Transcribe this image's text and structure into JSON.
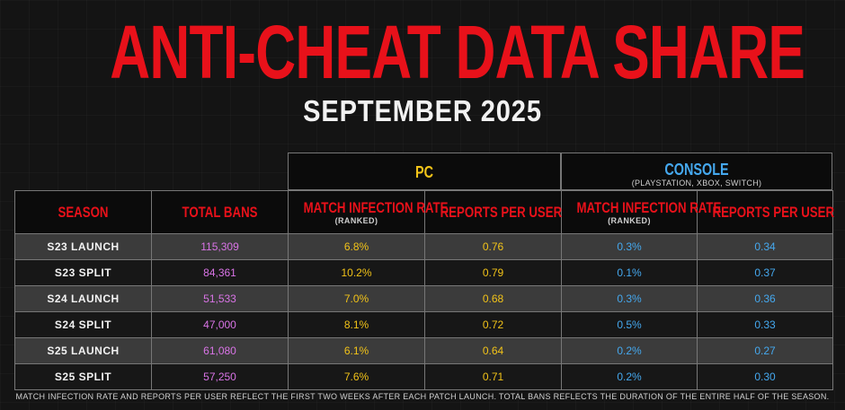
{
  "title": "ANTI-CHEAT DATA SHARE",
  "subtitle": "SEPTEMBER 2025",
  "groups": {
    "pc": {
      "label": "PC"
    },
    "console": {
      "label": "CONSOLE",
      "sublabel": "(PLAYSTATION, XBOX, SWITCH)"
    }
  },
  "columns": {
    "season": "SEASON",
    "total_bans": "TOTAL BANS",
    "pc_infection": "MATCH INFECTION RATE",
    "pc_infection_sub": "(RANKED)",
    "pc_reports": "REPORTS PER USER",
    "con_infection": "MATCH INFECTION RATE",
    "con_infection_sub": "(RANKED)",
    "con_reports": "REPORTS PER USER"
  },
  "rows": [
    {
      "season": "S23 LAUNCH",
      "total_bans": "115,309",
      "pc_infection": "6.8%",
      "pc_reports": "0.76",
      "con_infection": "0.3%",
      "con_reports": "0.34"
    },
    {
      "season": "S23 SPLIT",
      "total_bans": "84,361",
      "pc_infection": "10.2%",
      "pc_reports": "0.79",
      "con_infection": "0.1%",
      "con_reports": "0.37"
    },
    {
      "season": "S24 LAUNCH",
      "total_bans": "51,533",
      "pc_infection": "7.0%",
      "pc_reports": "0.68",
      "con_infection": "0.3%",
      "con_reports": "0.36"
    },
    {
      "season": "S24 SPLIT",
      "total_bans": "47,000",
      "pc_infection": "8.1%",
      "pc_reports": "0.72",
      "con_infection": "0.5%",
      "con_reports": "0.33"
    },
    {
      "season": "S25 LAUNCH",
      "total_bans": "61,080",
      "pc_infection": "6.1%",
      "pc_reports": "0.64",
      "con_infection": "0.2%",
      "con_reports": "0.27"
    },
    {
      "season": "S25 SPLIT",
      "total_bans": "57,250",
      "pc_infection": "7.6%",
      "pc_reports": "0.71",
      "con_infection": "0.2%",
      "con_reports": "0.30"
    }
  ],
  "footnote": "MATCH INFECTION RATE AND REPORTS PER USER REFLECT THE FIRST TWO WEEKS AFTER EACH PATCH LAUNCH.  TOTAL BANS REFLECTS THE DURATION OF THE ENTIRE HALF OF THE SEASON.",
  "colors": {
    "title_red": "#e8111a",
    "pc_yellow": "#f2c318",
    "console_blue": "#45a8ee",
    "bans_purple": "#d974e6"
  }
}
